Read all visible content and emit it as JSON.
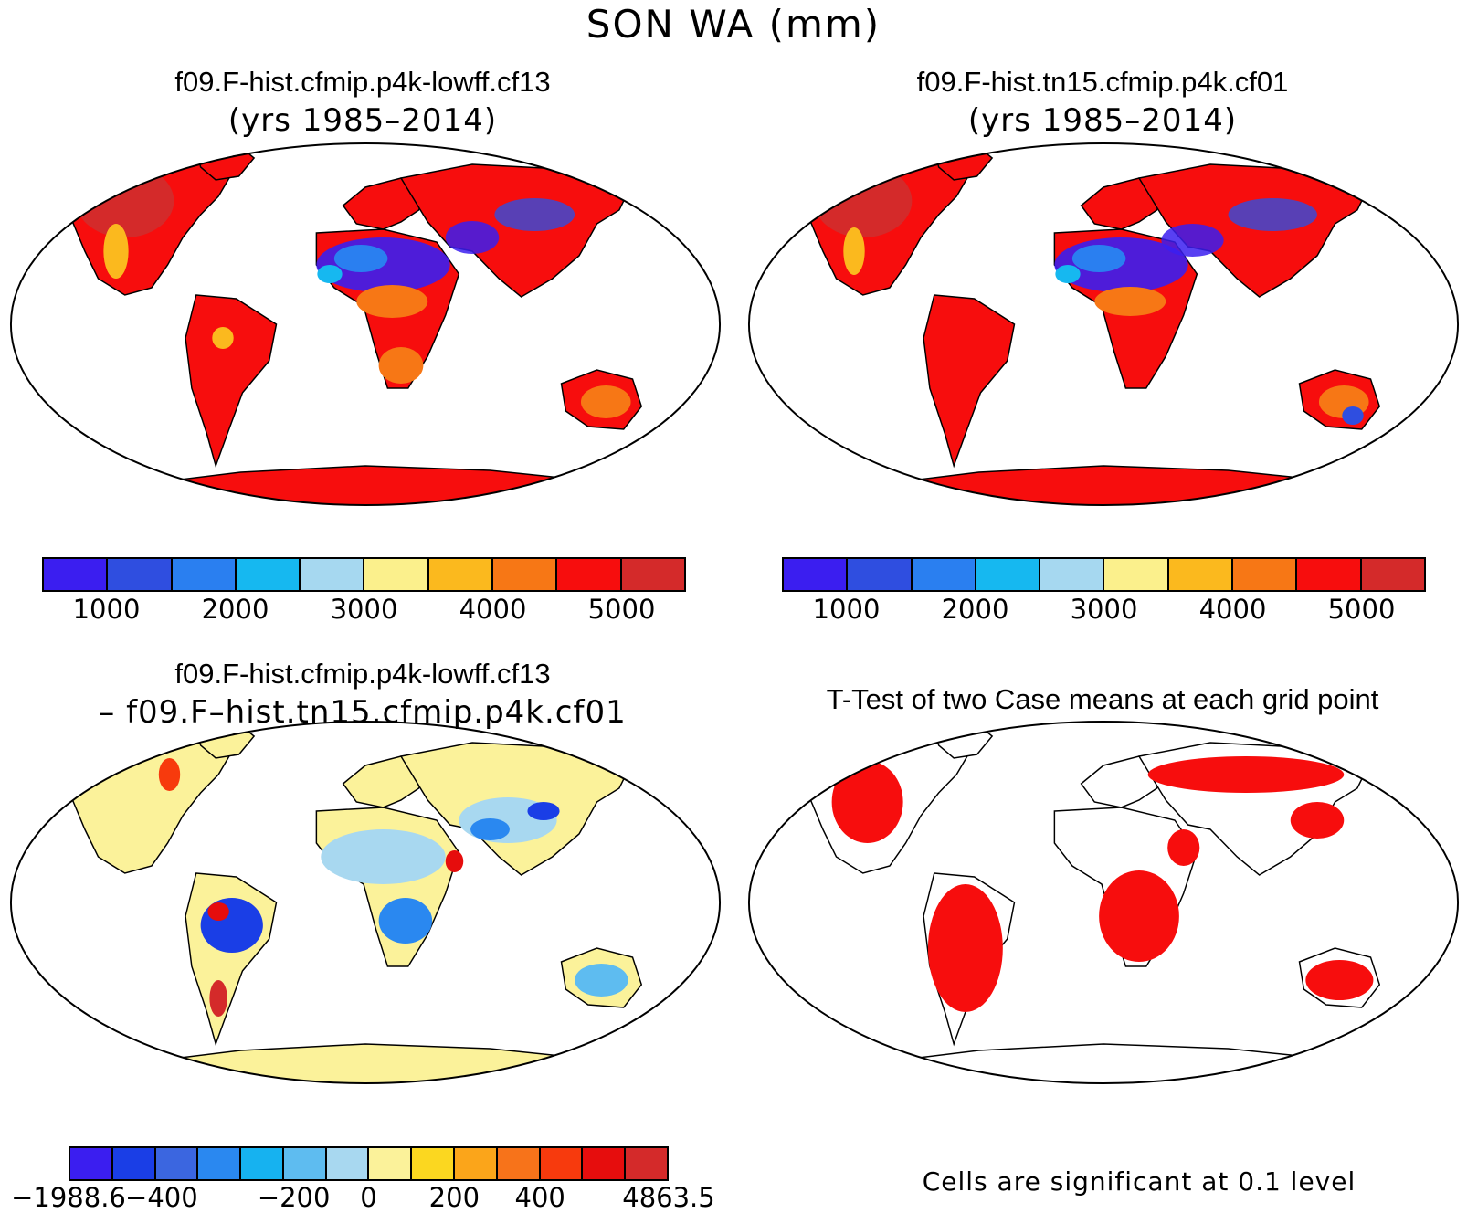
{
  "title": "SON WA (mm)",
  "panels": [
    {
      "id": "p1",
      "title": "f09.F-hist.cfmip.p4k-lowff.cf13",
      "subtitle": "(yrs 1985–2014)"
    },
    {
      "id": "p2",
      "title": "f09.F-hist.tn15.cfmip.p4k.cf01",
      "subtitle": "(yrs 1985–2014)"
    },
    {
      "id": "p3",
      "title": "f09.F-hist.cfmip.p4k-lowff.cf13",
      "subtitle": "– f09.F–hist.tn15.cfmip.p4k.cf01"
    },
    {
      "id": "p4",
      "title": "T-Test of two Case means at each grid point"
    }
  ],
  "colorbar_abs": {
    "colors": [
      "#3b1ef0",
      "#2f4ee0",
      "#2a7ff0",
      "#16b8f0",
      "#a6d8f0",
      "#fbf08c",
      "#fbb91e",
      "#f77715",
      "#f70d0d",
      "#d42a2a"
    ],
    "tick_labels": [
      "1000",
      "2000",
      "3000",
      "4000",
      "5000"
    ]
  },
  "colorbar_diff": {
    "colors": [
      "#3b1ef0",
      "#1a3ee6",
      "#3b66e0",
      "#2a88f0",
      "#16b2f0",
      "#5ebcf0",
      "#a8d8f0",
      "#fbf29a",
      "#fbd720",
      "#fba51a",
      "#f7731a",
      "#f73a0d",
      "#e60d0d",
      "#d42a2a"
    ],
    "tick_labels": [
      "−1988.6",
      "−400",
      "−200",
      "0",
      "200",
      "400",
      "4863.5"
    ]
  },
  "significance_color": "#f70d0d",
  "significance_note": "Cells are significant at 0.1 level"
}
